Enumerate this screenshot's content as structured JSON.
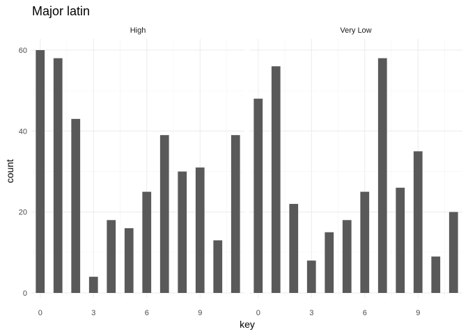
{
  "chart_data": {
    "type": "bar",
    "title": "Major latin",
    "xlabel": "key",
    "ylabel": "count",
    "x_ticks": [
      0,
      3,
      6,
      9
    ],
    "y_ticks": [
      0,
      20,
      40,
      60
    ],
    "xlim": [
      -0.5,
      11.5
    ],
    "ylim": [
      0,
      61
    ],
    "bar_color": "#595959",
    "grid": true,
    "facets": [
      {
        "label": "High",
        "x": [
          0,
          1,
          2,
          3,
          4,
          5,
          6,
          7,
          8,
          9,
          10,
          11
        ],
        "values": [
          60,
          58,
          43,
          4,
          18,
          16,
          25,
          39,
          30,
          31,
          13,
          39
        ]
      },
      {
        "label": "Very Low",
        "x": [
          0,
          1,
          2,
          3,
          4,
          5,
          6,
          7,
          8,
          9,
          10,
          11
        ],
        "values": [
          48,
          56,
          22,
          8,
          15,
          18,
          25,
          58,
          26,
          35,
          9,
          20
        ]
      }
    ]
  }
}
